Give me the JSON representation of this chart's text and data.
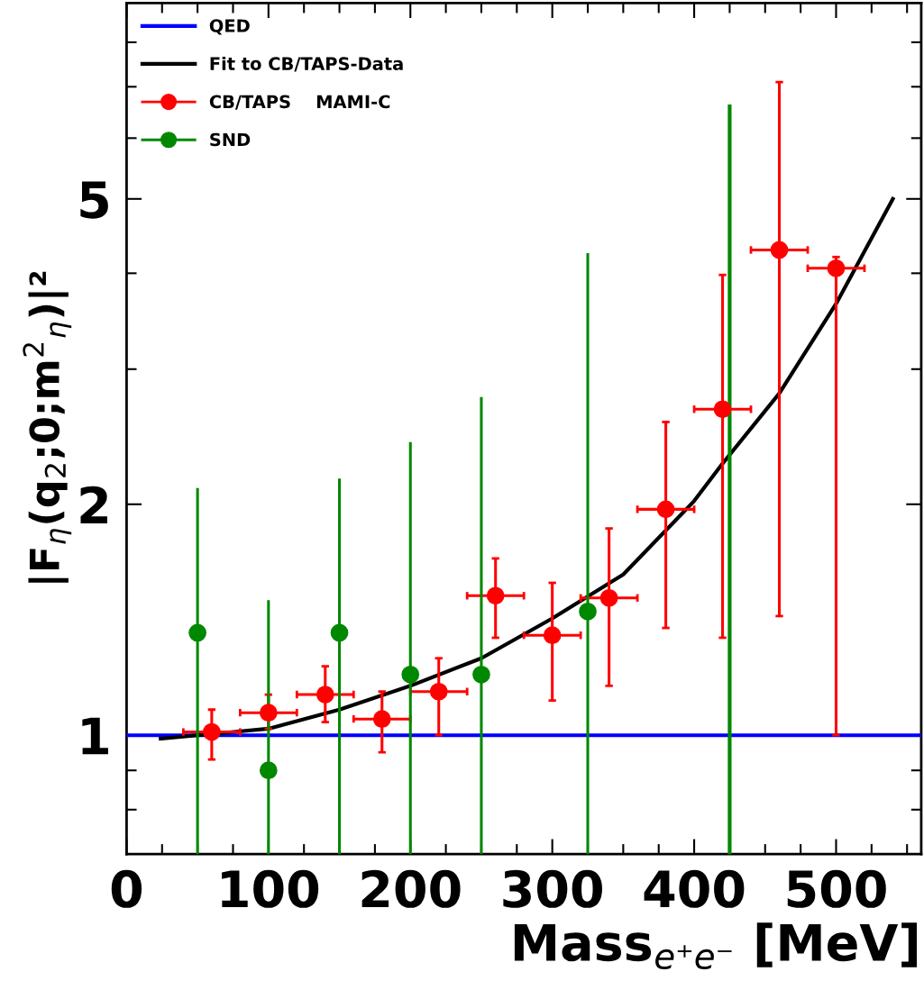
{
  "chart_data": {
    "type": "scatter",
    "xlabel": "Mass$_{e⁺e⁻}$ [MeV]",
    "ylabel": "|F$_{η}$(q$_{2}$;0;m$^{2}$$_{η}$)|²",
    "log": "y",
    "xlim": [
      0,
      560
    ],
    "ylim": [
      0.7,
      9
    ],
    "xticks": [
      0,
      {
        "value": 25,
        "label": null
      },
      {
        "value": 50,
        "label": null
      },
      {
        "value": 75,
        "label": null
      },
      100,
      {
        "value": 125,
        "label": null
      },
      {
        "value": 150,
        "label": null
      },
      {
        "value": 175,
        "label": null
      },
      200,
      {
        "value": 225,
        "label": null
      },
      {
        "value": 250,
        "label": null
      },
      {
        "value": 275,
        "label": null
      },
      300,
      {
        "value": 325,
        "label": null
      },
      {
        "value": 350,
        "label": null
      },
      {
        "value": 375,
        "label": null
      },
      400,
      {
        "value": 425,
        "label": null
      },
      {
        "value": 450,
        "label": null
      },
      {
        "value": 475,
        "label": null
      },
      500,
      {
        "value": 525,
        "label": null
      },
      {
        "value": 550,
        "label": null
      }
    ],
    "yticks": [
      {
        "value": 0.8,
        "label": null
      },
      {
        "value": 0.9,
        "label": null
      },
      1,
      2,
      {
        "value": 3,
        "label": null
      },
      {
        "value": 4,
        "label": null
      },
      5,
      {
        "value": 6,
        "label": null
      },
      {
        "value": 7,
        "label": null
      },
      {
        "value": 8,
        "label": null
      }
    ],
    "grid": false,
    "legend": "top left",
    "series": [
      {
        "name": "QED",
        "type": "line",
        "color": "#0000ff",
        "line_style": "solid",
        "marker": "none",
        "x": [
          0,
          560
        ],
        "values": [
          1,
          1
        ]
      },
      {
        "name": "Fit to CB/TAPS-Data",
        "type": "line",
        "color": "#000000",
        "line_style": "solid",
        "marker": "none",
        "x": [
          24,
          50,
          100,
          150,
          200,
          250,
          300,
          350,
          400,
          420,
          460,
          500,
          540
        ],
        "values": [
          0.99,
          1.0,
          1.02,
          1.08,
          1.16,
          1.26,
          1.42,
          1.62,
          2.02,
          2.26,
          2.79,
          3.65,
          5.0
        ]
      },
      {
        "name": "CB/TAPS    MAMI-C",
        "color": "#ff0000",
        "marker": "circle",
        "x": [
          60,
          100,
          140,
          180,
          220,
          260,
          300,
          340,
          380,
          420,
          460,
          500
        ],
        "values": [
          1.01,
          1.07,
          1.13,
          1.05,
          1.14,
          1.52,
          1.35,
          1.51,
          1.97,
          2.66,
          4.29,
          4.06
        ],
        "errors": [
          [
            0.93,
            1.08
          ],
          [
            1.02,
            1.13
          ],
          [
            1.04,
            1.23
          ],
          [
            0.95,
            1.14
          ],
          [
            1.0,
            1.26
          ],
          [
            1.34,
            1.7
          ],
          [
            1.11,
            1.58
          ],
          [
            1.16,
            1.86
          ],
          [
            1.38,
            2.56
          ],
          [
            1.34,
            3.98
          ],
          [
            1.43,
            7.1
          ],
          [
            1.0,
            4.2
          ]
        ],
        "xerrors": [
          20,
          20,
          20,
          20,
          20,
          20,
          20,
          20,
          20,
          20,
          20,
          20
        ]
      },
      {
        "name": "SND",
        "color": "#008800",
        "marker": "circle",
        "x": [
          50,
          100,
          150,
          200,
          250,
          325
        ],
        "values": [
          1.36,
          0.9,
          1.36,
          1.2,
          1.2,
          1.45
        ],
        "errors": [
          [
            0.7,
            2.1
          ],
          [
            0.7,
            1.5
          ],
          [
            0.7,
            2.16
          ],
          [
            0.7,
            2.41
          ],
          [
            0.7,
            2.76
          ],
          [
            0.7,
            4.25
          ]
        ]
      },
      {
        "type": "line",
        "color": "#008800",
        "line_style": "solid",
        "marker": "none",
        "x": [
          425,
          425
        ],
        "values": [
          0.7,
          6.6
        ]
      }
    ]
  }
}
